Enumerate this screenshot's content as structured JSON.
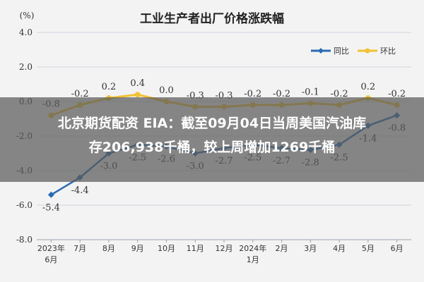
{
  "headline": {
    "line1": "北京期货配资 EIA：截至09月04日当周美国汽油库",
    "line2": "存206,938千桶，较上周增加1269千桶"
  },
  "chart_data": {
    "type": "line",
    "title": "工业生产者出厂价格涨跌幅",
    "unit": "(%)",
    "categories": [
      [
        "2023年",
        "6月"
      ],
      [
        "7月"
      ],
      [
        "8月"
      ],
      [
        "9月"
      ],
      [
        "10月"
      ],
      [
        "11月"
      ],
      [
        "12月"
      ],
      [
        "2024年",
        "1月"
      ],
      [
        "2月"
      ],
      [
        "3月"
      ],
      [
        "4月"
      ],
      [
        "5月"
      ],
      [
        "6月"
      ]
    ],
    "ylim": [
      -8.0,
      4.0
    ],
    "yticks": [
      "4.0",
      "2.0",
      "0.0",
      "-2.0",
      "-4.0",
      "-6.0",
      "-8.0"
    ],
    "ytick_values": [
      4,
      2,
      0,
      -2,
      -4,
      -6,
      -8
    ],
    "legend_position": "top-right",
    "series": [
      {
        "name": "同比",
        "color": "#2a6bb3",
        "values": [
          -5.4,
          -4.4,
          -3.0,
          -2.5,
          -2.6,
          -3.0,
          -2.7,
          -2.5,
          -2.7,
          -2.8,
          -2.5,
          -1.4,
          -0.8
        ],
        "labels": [
          "-5.4",
          "-4.4",
          "-3.0",
          "-2.5",
          "-2.6",
          "-3.0",
          "-2.7",
          "-2.5",
          "-2.7",
          "-2.8",
          "-2.5",
          "-1.4",
          "-0.8"
        ]
      },
      {
        "name": "环比",
        "color": "#f1c232",
        "values": [
          -0.8,
          -0.2,
          0.2,
          0.4,
          0.0,
          -0.3,
          -0.3,
          -0.2,
          -0.2,
          -0.1,
          -0.2,
          0.2,
          -0.2
        ],
        "labels": [
          "-0.8",
          "-0.2",
          "0.2",
          "0.4",
          "0.0",
          "-0.3",
          "-0.3",
          "-0.2",
          "-0.2",
          "-0.1",
          "-0.2",
          "0.2",
          "-0.2"
        ]
      }
    ]
  }
}
